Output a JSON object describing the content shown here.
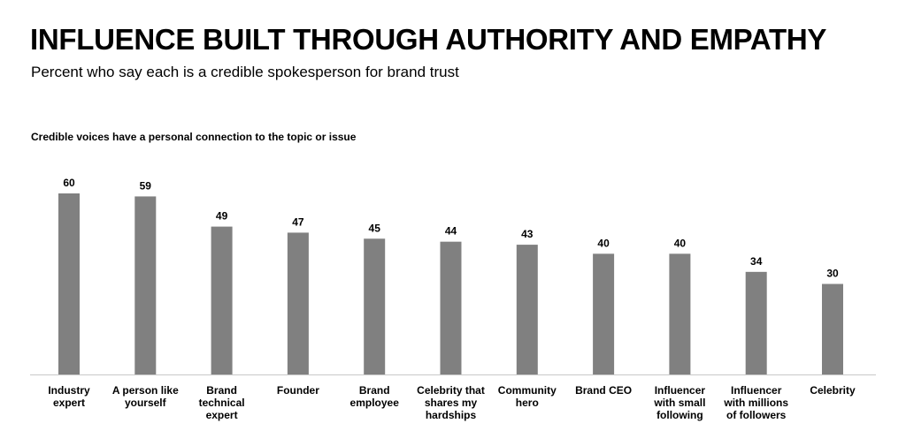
{
  "title": "INFLUENCE BUILT THROUGH AUTHORITY AND EMPATHY",
  "subtitle": "Percent who say each is a credible spokesperson for brand trust",
  "chart_heading": "Credible voices have a personal connection to the topic or issue",
  "chart_data": {
    "type": "bar",
    "title": "Credible voices have a personal connection to the topic or issue",
    "categories": [
      [
        "Industry",
        "expert"
      ],
      [
        "A person like",
        "yourself"
      ],
      [
        "Brand",
        "technical",
        "expert"
      ],
      [
        "Founder"
      ],
      [
        "Brand",
        "employee"
      ],
      [
        "Celebrity that",
        "shares my",
        "hardships"
      ],
      [
        "Community",
        "hero"
      ],
      [
        "Brand CEO"
      ],
      [
        "Influencer",
        "with small",
        "following"
      ],
      [
        "Influencer",
        "with millions",
        "of followers"
      ],
      [
        "Celebrity"
      ]
    ],
    "values": [
      60,
      59,
      49,
      47,
      45,
      44,
      43,
      40,
      40,
      34,
      30
    ],
    "ylim": [
      0,
      60
    ],
    "xlabel": "",
    "ylabel": "",
    "grid": false,
    "bar_color": "#808080",
    "axis_color": "#c8c8c8"
  }
}
